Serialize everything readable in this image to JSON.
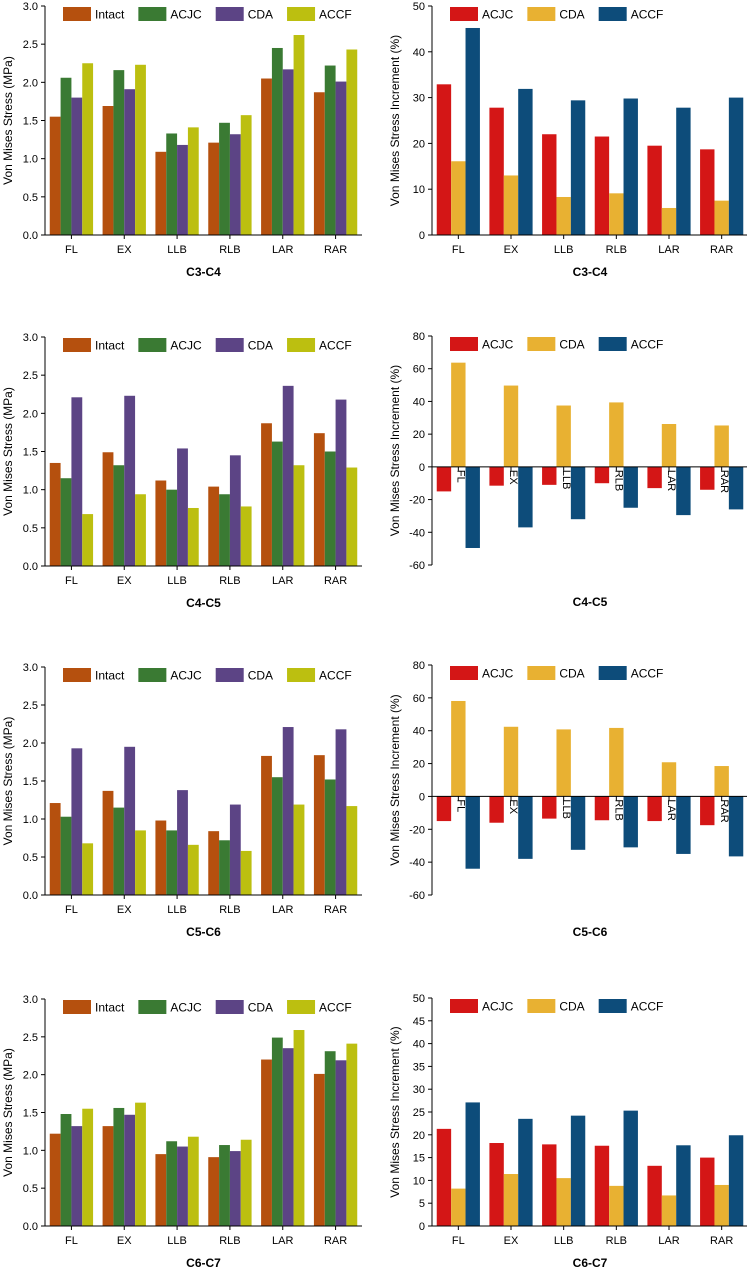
{
  "colors": {
    "Intact": "#b5500e",
    "ACJC_stress": "#3a7a33",
    "CDA_stress": "#5c4485",
    "ACCF_stress": "#bcbf10",
    "ACJC_inc": "#d41616",
    "CDA_inc": "#e8b132",
    "ACCF_inc": "#0d4c7a"
  },
  "chart_data": [
    {
      "type": "bar",
      "title": "C3-C4",
      "xlabel": "",
      "ylabel": "Von Mises Stress (MPa)",
      "ylim": [
        0,
        3.0
      ],
      "yticks": [
        "0.0",
        "0.5",
        "1.0",
        "1.5",
        "2.0",
        "2.5",
        "3.0"
      ],
      "yticks_values": [
        0,
        0.5,
        1,
        1.5,
        2,
        2.5,
        3
      ],
      "categories": [
        "FL",
        "EX",
        "LLB",
        "RLB",
        "LAR",
        "RAR"
      ],
      "grid": false,
      "legend": "top-left",
      "series": [
        {
          "name": "Intact",
          "color_key": "Intact",
          "values": [
            1.55,
            1.69,
            1.09,
            1.21,
            2.05,
            1.87
          ]
        },
        {
          "name": "ACJC",
          "color_key": "ACJC_stress",
          "values": [
            2.06,
            2.16,
            1.33,
            1.47,
            2.45,
            2.22
          ]
        },
        {
          "name": "CDA",
          "color_key": "CDA_stress",
          "values": [
            1.8,
            1.91,
            1.18,
            1.32,
            2.17,
            2.01
          ]
        },
        {
          "name": "ACCF",
          "color_key": "ACCF_stress",
          "values": [
            2.25,
            2.23,
            1.41,
            1.57,
            2.62,
            2.43
          ]
        }
      ]
    },
    {
      "type": "bar",
      "title": "C3-C4",
      "xlabel": "",
      "ylabel": "Von Mises Stress Increment (%)",
      "ylim": [
        0,
        50
      ],
      "yticks": [
        "0",
        "10",
        "20",
        "30",
        "40",
        "50"
      ],
      "yticks_values": [
        0,
        10,
        20,
        30,
        40,
        50
      ],
      "categories": [
        "FL",
        "EX",
        "LLB",
        "RLB",
        "LAR",
        "RAR"
      ],
      "grid": false,
      "legend": "top-left",
      "series": [
        {
          "name": "ACJC",
          "color_key": "ACJC_inc",
          "values": [
            32.9,
            27.8,
            22.0,
            21.5,
            19.5,
            18.7
          ]
        },
        {
          "name": "CDA",
          "color_key": "CDA_inc",
          "values": [
            16.1,
            13.0,
            8.3,
            9.1,
            5.9,
            7.5
          ]
        },
        {
          "name": "ACCF",
          "color_key": "ACCF_inc",
          "values": [
            45.2,
            31.9,
            29.4,
            29.8,
            27.8,
            30.0
          ]
        }
      ]
    },
    {
      "type": "bar",
      "title": "C4-C5",
      "xlabel": "",
      "ylabel": "Von Mises Stress (MPa)",
      "ylim": [
        0,
        3.0
      ],
      "yticks": [
        "0.0",
        "0.5",
        "1.0",
        "1.5",
        "2.0",
        "2.5",
        "3.0"
      ],
      "yticks_values": [
        0,
        0.5,
        1,
        1.5,
        2,
        2.5,
        3
      ],
      "categories": [
        "FL",
        "EX",
        "LLB",
        "RLB",
        "LAR",
        "RAR"
      ],
      "grid": false,
      "legend": "top-left",
      "series": [
        {
          "name": "Intact",
          "color_key": "Intact",
          "values": [
            1.35,
            1.49,
            1.12,
            1.04,
            1.87,
            1.74
          ]
        },
        {
          "name": "ACJC",
          "color_key": "ACJC_stress",
          "values": [
            1.15,
            1.32,
            1.0,
            0.94,
            1.63,
            1.5
          ]
        },
        {
          "name": "CDA",
          "color_key": "CDA_stress",
          "values": [
            2.21,
            2.23,
            1.54,
            1.45,
            2.36,
            2.18
          ]
        },
        {
          "name": "ACCF",
          "color_key": "ACCF_stress",
          "values": [
            0.68,
            0.94,
            0.76,
            0.78,
            1.32,
            1.29
          ]
        }
      ]
    },
    {
      "type": "bar",
      "title": "C4-C5",
      "xlabel": "",
      "ylabel": "Von Mises Stress Increment (%)",
      "ylim": [
        -60,
        80
      ],
      "yticks": [
        "-60",
        "-40",
        "-20",
        "0",
        "20",
        "40",
        "60",
        "80"
      ],
      "yticks_values": [
        -60,
        -40,
        -20,
        0,
        20,
        40,
        60,
        80
      ],
      "categories": [
        "FL",
        "EX",
        "LLB",
        "RLB",
        "LAR",
        "RAR"
      ],
      "grid": false,
      "legend": "top-left",
      "series": [
        {
          "name": "ACJC",
          "color_key": "ACJC_inc",
          "values": [
            -15.0,
            -11.5,
            -11.0,
            -10.0,
            -13.0,
            -14.0
          ]
        },
        {
          "name": "CDA",
          "color_key": "CDA_inc",
          "values": [
            63.7,
            49.7,
            37.5,
            39.4,
            26.2,
            25.3
          ]
        },
        {
          "name": "ACCF",
          "color_key": "ACCF_inc",
          "values": [
            -49.6,
            -37.0,
            -32.0,
            -25.0,
            -29.5,
            -26.0
          ]
        }
      ]
    },
    {
      "type": "bar",
      "title": "C5-C6",
      "xlabel": "",
      "ylabel": "Von Mises Stress (MPa)",
      "ylim": [
        0,
        3.0
      ],
      "yticks": [
        "0.0",
        "0.5",
        "1.0",
        "1.5",
        "2.0",
        "2.5",
        "3.0"
      ],
      "yticks_values": [
        0,
        0.5,
        1,
        1.5,
        2,
        2.5,
        3
      ],
      "categories": [
        "FL",
        "EX",
        "LLB",
        "RLB",
        "LAR",
        "RAR"
      ],
      "grid": false,
      "legend": "top-left",
      "series": [
        {
          "name": "Intact",
          "color_key": "Intact",
          "values": [
            1.21,
            1.37,
            0.98,
            0.84,
            1.83,
            1.84
          ]
        },
        {
          "name": "ACJC",
          "color_key": "ACJC_stress",
          "values": [
            1.03,
            1.15,
            0.85,
            0.72,
            1.55,
            1.52
          ]
        },
        {
          "name": "CDA",
          "color_key": "CDA_stress",
          "values": [
            1.93,
            1.95,
            1.38,
            1.19,
            2.21,
            2.18
          ]
        },
        {
          "name": "ACCF",
          "color_key": "ACCF_stress",
          "values": [
            0.68,
            0.85,
            0.66,
            0.58,
            1.19,
            1.17
          ]
        }
      ]
    },
    {
      "type": "bar",
      "title": "C5-C6",
      "xlabel": "",
      "ylabel": "Von Mises Stress Increment (%)",
      "ylim": [
        -60,
        80
      ],
      "yticks": [
        "-60",
        "-40",
        "-20",
        "0",
        "20",
        "40",
        "60",
        "80"
      ],
      "yticks_values": [
        -60,
        -40,
        -20,
        0,
        20,
        40,
        60,
        80
      ],
      "categories": [
        "FL",
        "EX",
        "LLB",
        "RLB",
        "LAR",
        "RAR"
      ],
      "grid": false,
      "legend": "top-left",
      "series": [
        {
          "name": "ACJC",
          "color_key": "ACJC_inc",
          "values": [
            -15.0,
            -16.0,
            -13.5,
            -14.5,
            -15.0,
            -17.5
          ]
        },
        {
          "name": "CDA",
          "color_key": "CDA_inc",
          "values": [
            58.1,
            42.4,
            40.8,
            41.7,
            20.8,
            18.5
          ]
        },
        {
          "name": "ACCF",
          "color_key": "ACCF_inc",
          "values": [
            -44.0,
            -38.0,
            -32.5,
            -31.0,
            -35.0,
            -36.5
          ]
        }
      ]
    },
    {
      "type": "bar",
      "title": "C6-C7",
      "xlabel": "",
      "ylabel": "Von Mises Stress (MPa)",
      "ylim": [
        0,
        3.0
      ],
      "yticks": [
        "0.0",
        "0.5",
        "1.0",
        "1.5",
        "2.0",
        "2.5",
        "3.0"
      ],
      "yticks_values": [
        0,
        0.5,
        1,
        1.5,
        2,
        2.5,
        3
      ],
      "categories": [
        "FL",
        "EX",
        "LLB",
        "RLB",
        "LAR",
        "RAR"
      ],
      "grid": false,
      "legend": "top-left",
      "series": [
        {
          "name": "Intact",
          "color_key": "Intact",
          "values": [
            1.22,
            1.32,
            0.95,
            0.91,
            2.2,
            2.01
          ]
        },
        {
          "name": "ACJC",
          "color_key": "ACJC_stress",
          "values": [
            1.48,
            1.56,
            1.12,
            1.07,
            2.49,
            2.31
          ]
        },
        {
          "name": "CDA",
          "color_key": "CDA_stress",
          "values": [
            1.32,
            1.47,
            1.05,
            0.99,
            2.35,
            2.19
          ]
        },
        {
          "name": "ACCF",
          "color_key": "ACCF_stress",
          "values": [
            1.55,
            1.63,
            1.18,
            1.14,
            2.59,
            2.41
          ]
        }
      ]
    },
    {
      "type": "bar",
      "title": "C6-C7",
      "xlabel": "",
      "ylabel": "Von Mises Stress Increment (%)",
      "ylim": [
        0,
        50
      ],
      "yticks": [
        "0",
        "5",
        "10",
        "15",
        "20",
        "25",
        "30",
        "35",
        "40",
        "45",
        "50"
      ],
      "yticks_values": [
        0,
        5,
        10,
        15,
        20,
        25,
        30,
        35,
        40,
        45,
        50
      ],
      "categories": [
        "FL",
        "EX",
        "LLB",
        "RLB",
        "LAR",
        "RAR"
      ],
      "grid": false,
      "legend": "top-left",
      "series": [
        {
          "name": "ACJC",
          "color_key": "ACJC_inc",
          "values": [
            21.3,
            18.2,
            17.9,
            17.6,
            13.2,
            15.0
          ]
        },
        {
          "name": "CDA",
          "color_key": "CDA_inc",
          "values": [
            8.2,
            11.4,
            10.5,
            8.8,
            6.7,
            9.0
          ]
        },
        {
          "name": "ACCF",
          "color_key": "ACCF_inc",
          "values": [
            27.1,
            23.5,
            24.2,
            25.3,
            17.7,
            19.9
          ]
        }
      ]
    }
  ]
}
